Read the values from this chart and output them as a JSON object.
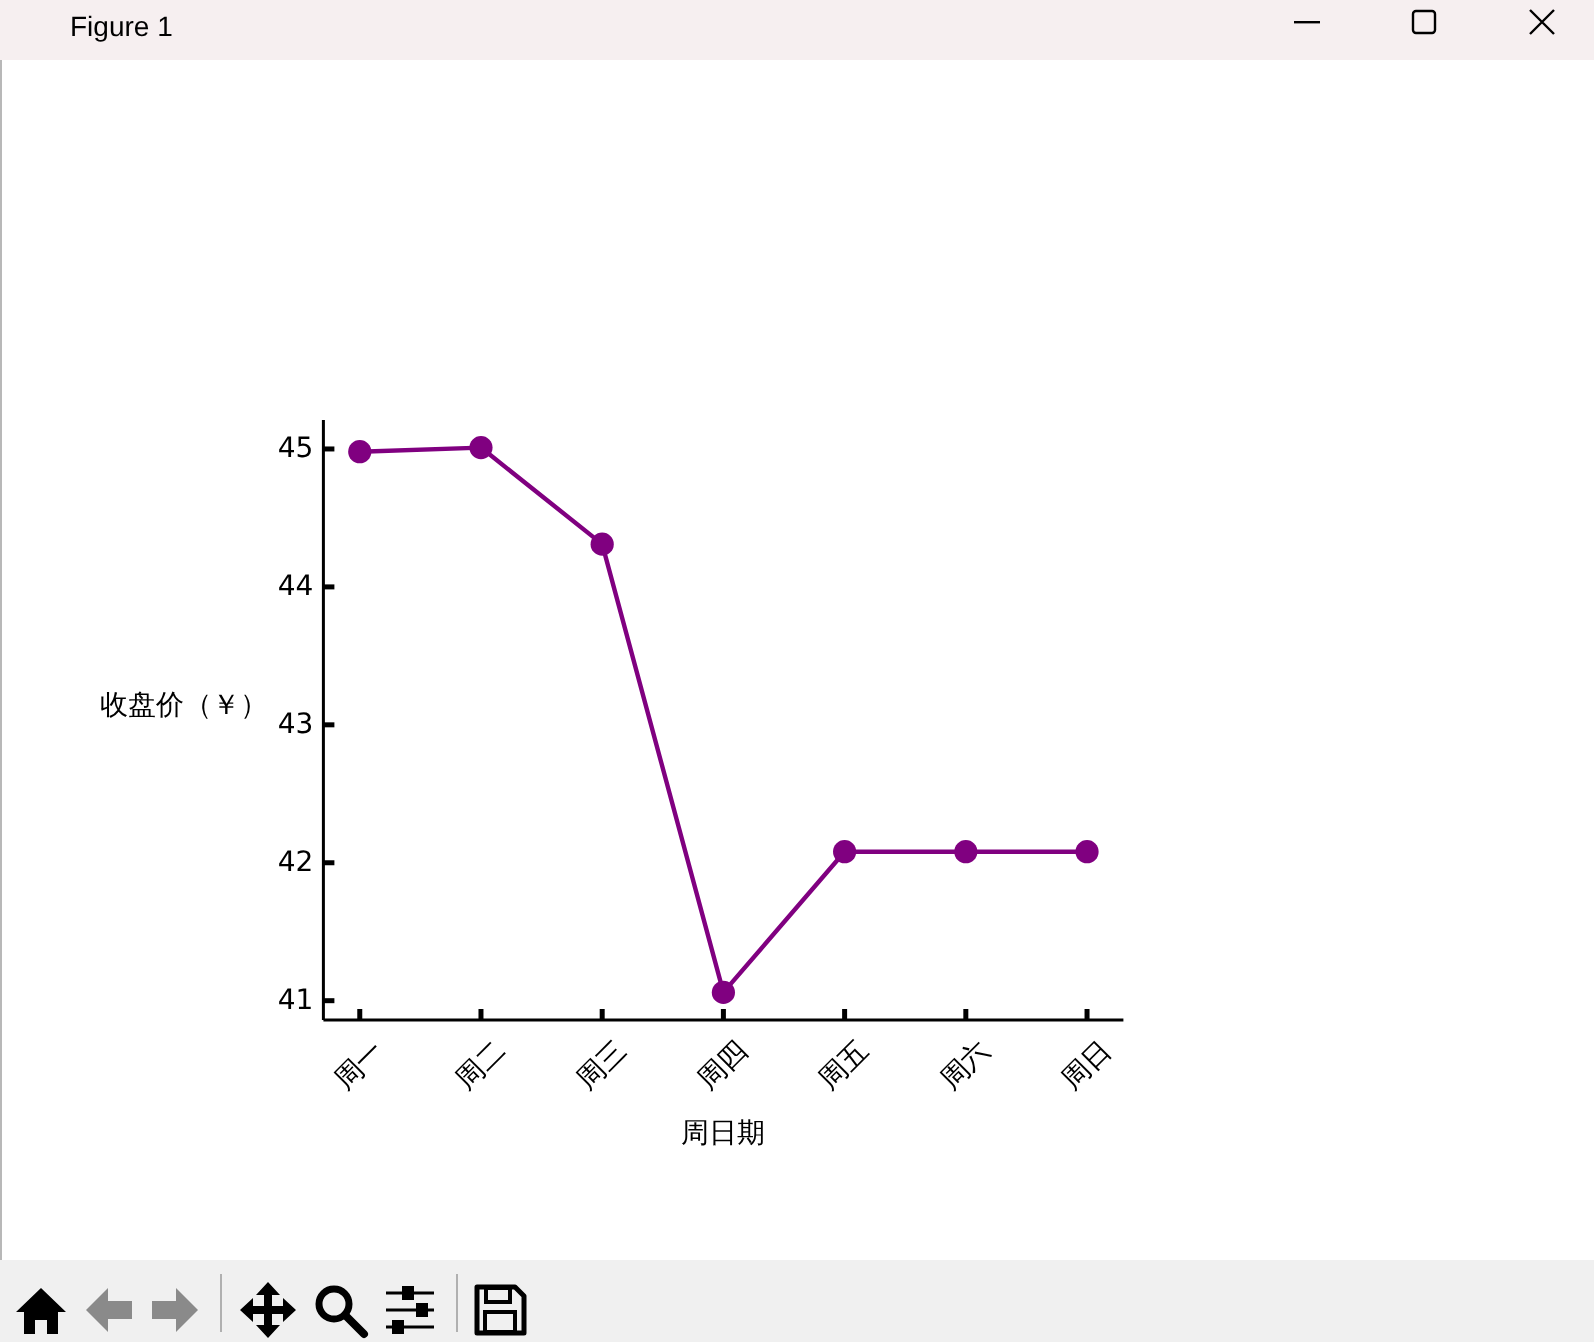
{
  "chart_data": {
    "type": "line",
    "categories": [
      "周一",
      "周二",
      "周三",
      "周四",
      "周五",
      "周六",
      "周日"
    ],
    "series": [
      {
        "color": "#800080",
        "values": [
          44.98,
          45.01,
          44.31,
          41.06,
          42.08,
          42.08,
          42.08
        ]
      }
    ],
    "xlabel": "周日期",
    "ylabel": "收盘价（￥）",
    "ylim": [
      40.86,
      45.21
    ],
    "yticks": [
      41,
      42,
      43,
      44,
      45
    ],
    "marker": "circle",
    "line_style": "solid",
    "annotations": [
      "Figure 1"
    ]
  }
}
